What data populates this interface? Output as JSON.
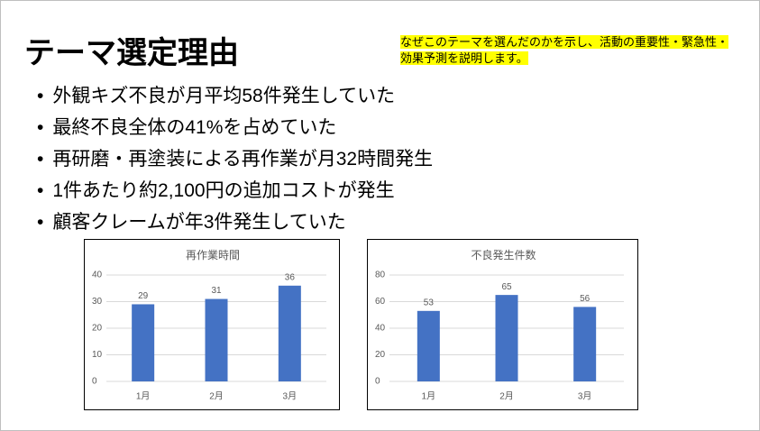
{
  "title": "テーマ選定理由",
  "note": "なぜこのテーマを選んだのかを示し、活動の重要性・緊急性・効果予測を説明します。",
  "bullets": [
    "外観キズ不良が月平均58件発生していた",
    "最終不良全体の41%を占めていた",
    "再研磨・再塗装による再作業が月32時間発生",
    "1件あたり約2,100円の追加コストが発生",
    "顧客クレームが年3件発生していた"
  ],
  "chart_data": [
    {
      "type": "bar",
      "title": "再作業時間",
      "categories": [
        "1月",
        "2月",
        "3月"
      ],
      "values": [
        29,
        31,
        36
      ],
      "color": "#4472c4",
      "ylim": [
        0,
        40
      ],
      "yticks": [
        0,
        10,
        20,
        30,
        40
      ],
      "grid": true,
      "show_values": true
    },
    {
      "type": "bar",
      "title": "不良発生件数",
      "categories": [
        "1月",
        "2月",
        "3月"
      ],
      "values": [
        53,
        65,
        56
      ],
      "color": "#4472c4",
      "ylim": [
        0,
        80
      ],
      "yticks": [
        0,
        20,
        40,
        60,
        80
      ],
      "grid": true,
      "show_values": true
    }
  ]
}
